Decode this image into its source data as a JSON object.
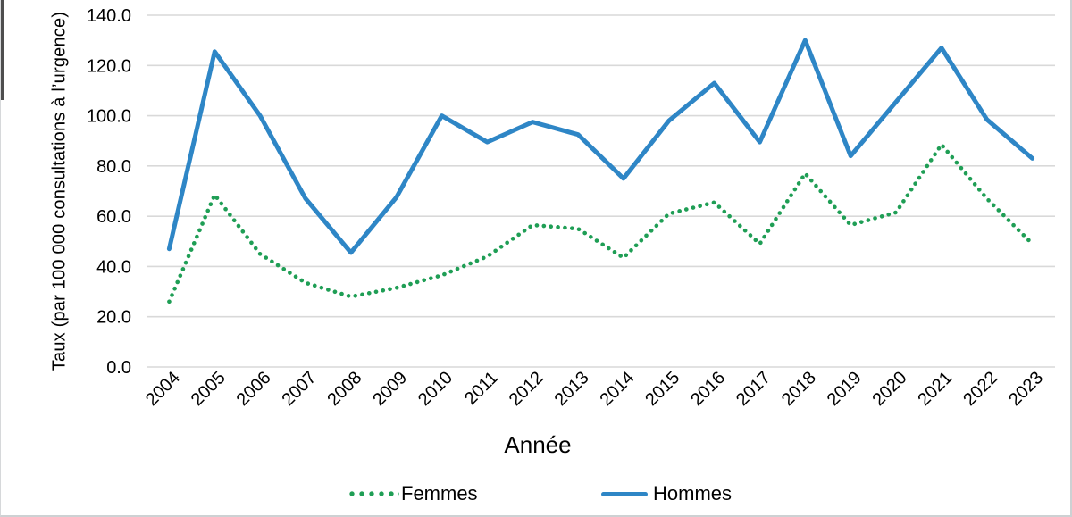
{
  "chart_data": {
    "type": "line",
    "title": "",
    "xlabel": "Année",
    "ylabel": "Taux (par 100 000 consultations à l’urgence)",
    "categories": [
      "2004",
      "2005",
      "2006",
      "2007",
      "2008",
      "2009",
      "2010",
      "2011",
      "2012",
      "2013",
      "2014",
      "2015",
      "2016",
      "2017",
      "2018",
      "2019",
      "2020",
      "2021",
      "2022",
      "2023"
    ],
    "series": [
      {
        "name": "Femmes",
        "color": "#1f9e55",
        "line_style": "dotted",
        "values": [
          26,
          68.5,
          45,
          33.5,
          28,
          31.5,
          36.5,
          44,
          56.5,
          55,
          43.5,
          61,
          65.5,
          49,
          77,
          56.5,
          61.5,
          88.5,
          67,
          49
        ]
      },
      {
        "name": "Hommes",
        "color": "#2e86c6",
        "line_style": "solid",
        "values": [
          47,
          125.5,
          100,
          67,
          45.5,
          67.5,
          100,
          89.5,
          97.5,
          92.5,
          75,
          98,
          113,
          89.5,
          130,
          84,
          105.5,
          127,
          98.5,
          83
        ]
      }
    ],
    "ylim": [
      0,
      140
    ],
    "ytick_step": 20,
    "ytick_labels": [
      "140.0",
      "120.0",
      "100.0",
      "80.0",
      "60.0",
      "40.0",
      "20.0",
      "0.0"
    ],
    "xtick_rotation_deg": -45,
    "grid": "horizontal",
    "grid_color": "#d9d9d9",
    "axis_line_color": "#d9d9d9",
    "legend_position": "bottom"
  }
}
